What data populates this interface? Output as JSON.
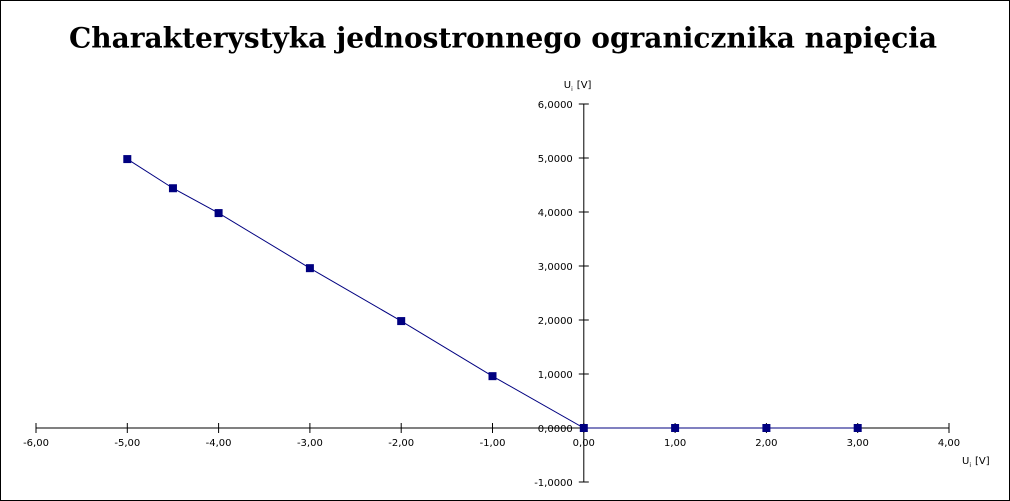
{
  "chart_data": {
    "type": "line",
    "title": "Charakterystyka jednostronnego ogranicznika napięcia",
    "xlabel": "U",
    "xlabel_sub": "i",
    "xlabel_unit": "[V]",
    "ylabel": "U",
    "ylabel_sub": "i",
    "ylabel_unit": "[V]",
    "x": [
      -5,
      -4.5,
      -4,
      -3,
      -2,
      -1,
      0,
      1,
      2,
      3
    ],
    "series": [
      {
        "color": "#000080",
        "values": [
          4.98,
          4.44,
          3.98,
          2.96,
          1.98,
          0.96,
          0,
          0,
          0,
          0
        ]
      }
    ],
    "xlim": [
      -6,
      4
    ],
    "xticks": [
      {
        "value": -6,
        "label": "-6,00"
      },
      {
        "value": -5,
        "label": "-5,00"
      },
      {
        "value": -4,
        "label": "-4,00"
      },
      {
        "value": -3,
        "label": "-3,00"
      },
      {
        "value": -2,
        "label": "-2,00"
      },
      {
        "value": -1,
        "label": "-1,00"
      },
      {
        "value": 0,
        "label": "0,00"
      },
      {
        "value": 1,
        "label": "1,00"
      },
      {
        "value": 2,
        "label": "2,00"
      },
      {
        "value": 3,
        "label": "3,00"
      },
      {
        "value": 4,
        "label": "4,00"
      }
    ],
    "ylim": [
      -1,
      6
    ],
    "yticks": [
      {
        "value": -1,
        "label": "-1,0000"
      },
      {
        "value": 0,
        "label": "0,0000"
      },
      {
        "value": 1,
        "label": "1,0000"
      },
      {
        "value": 2,
        "label": "2,0000"
      },
      {
        "value": 3,
        "label": "3,0000"
      },
      {
        "value": 4,
        "label": "4,0000"
      },
      {
        "value": 5,
        "label": "5,0000"
      },
      {
        "value": 6,
        "label": "6,0000"
      }
    ],
    "grid": false
  }
}
